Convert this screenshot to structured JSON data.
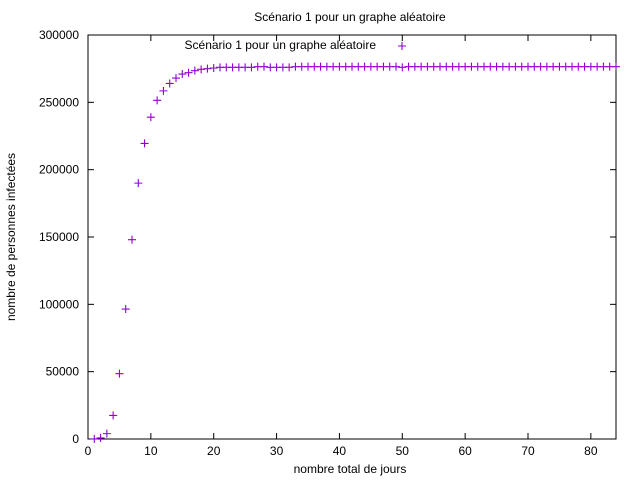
{
  "chart_data": {
    "type": "scatter",
    "title": "Scénario 1 pour un graphe aléatoire",
    "xlabel": "nombre total de jours",
    "ylabel": "nombre de personnes infectées",
    "xlim": [
      0,
      84
    ],
    "ylim": [
      0,
      300000
    ],
    "xticks": [
      0,
      10,
      20,
      30,
      40,
      50,
      60,
      70,
      80
    ],
    "yticks": [
      0,
      50000,
      100000,
      150000,
      200000,
      250000,
      300000
    ],
    "grid": false,
    "legend_position": "top-right",
    "series": [
      {
        "name": "Scénario 1 pour un graphe aléatoire",
        "color": "#9400d3",
        "marker": "plus",
        "x": [
          1,
          2,
          3,
          4,
          5,
          6,
          7,
          8,
          9,
          10,
          11,
          12,
          13,
          14,
          15,
          16,
          17,
          18,
          19,
          20,
          21,
          22,
          23,
          24,
          25,
          26,
          27,
          28,
          29,
          30,
          31,
          32,
          33,
          34,
          35,
          36,
          37,
          38,
          39,
          40,
          41,
          42,
          43,
          44,
          45,
          46,
          47,
          48,
          49,
          50,
          51,
          52,
          53,
          54,
          55,
          56,
          57,
          58,
          59,
          60,
          61,
          62,
          63,
          64,
          65,
          66,
          67,
          68,
          69,
          70,
          71,
          72,
          73,
          74,
          75,
          76,
          77,
          78,
          79,
          80,
          81,
          82,
          83,
          84
        ],
        "y": [
          100,
          800,
          4000,
          17500,
          48500,
          96500,
          148000,
          190000,
          219500,
          239000,
          251500,
          258500,
          264000,
          268000,
          271000,
          272000,
          273500,
          274500,
          275000,
          275500,
          276000,
          276000,
          276000,
          276000,
          276000,
          276000,
          276500,
          276500,
          276000,
          276000,
          276000,
          276000,
          276500,
          276500,
          276500,
          276500,
          276500,
          276500,
          276500,
          276500,
          276500,
          276500,
          276500,
          276500,
          276500,
          276500,
          276500,
          276500,
          276500,
          276000,
          276500,
          276500,
          276500,
          276500,
          276500,
          276500,
          276500,
          276500,
          276500,
          276500,
          276500,
          276500,
          276500,
          276500,
          276500,
          276500,
          276500,
          276500,
          276500,
          276500,
          276500,
          276500,
          276500,
          276500,
          276500,
          276500,
          276500,
          276500,
          276500,
          276500,
          276500,
          276500,
          276500,
          276500
        ]
      }
    ]
  }
}
